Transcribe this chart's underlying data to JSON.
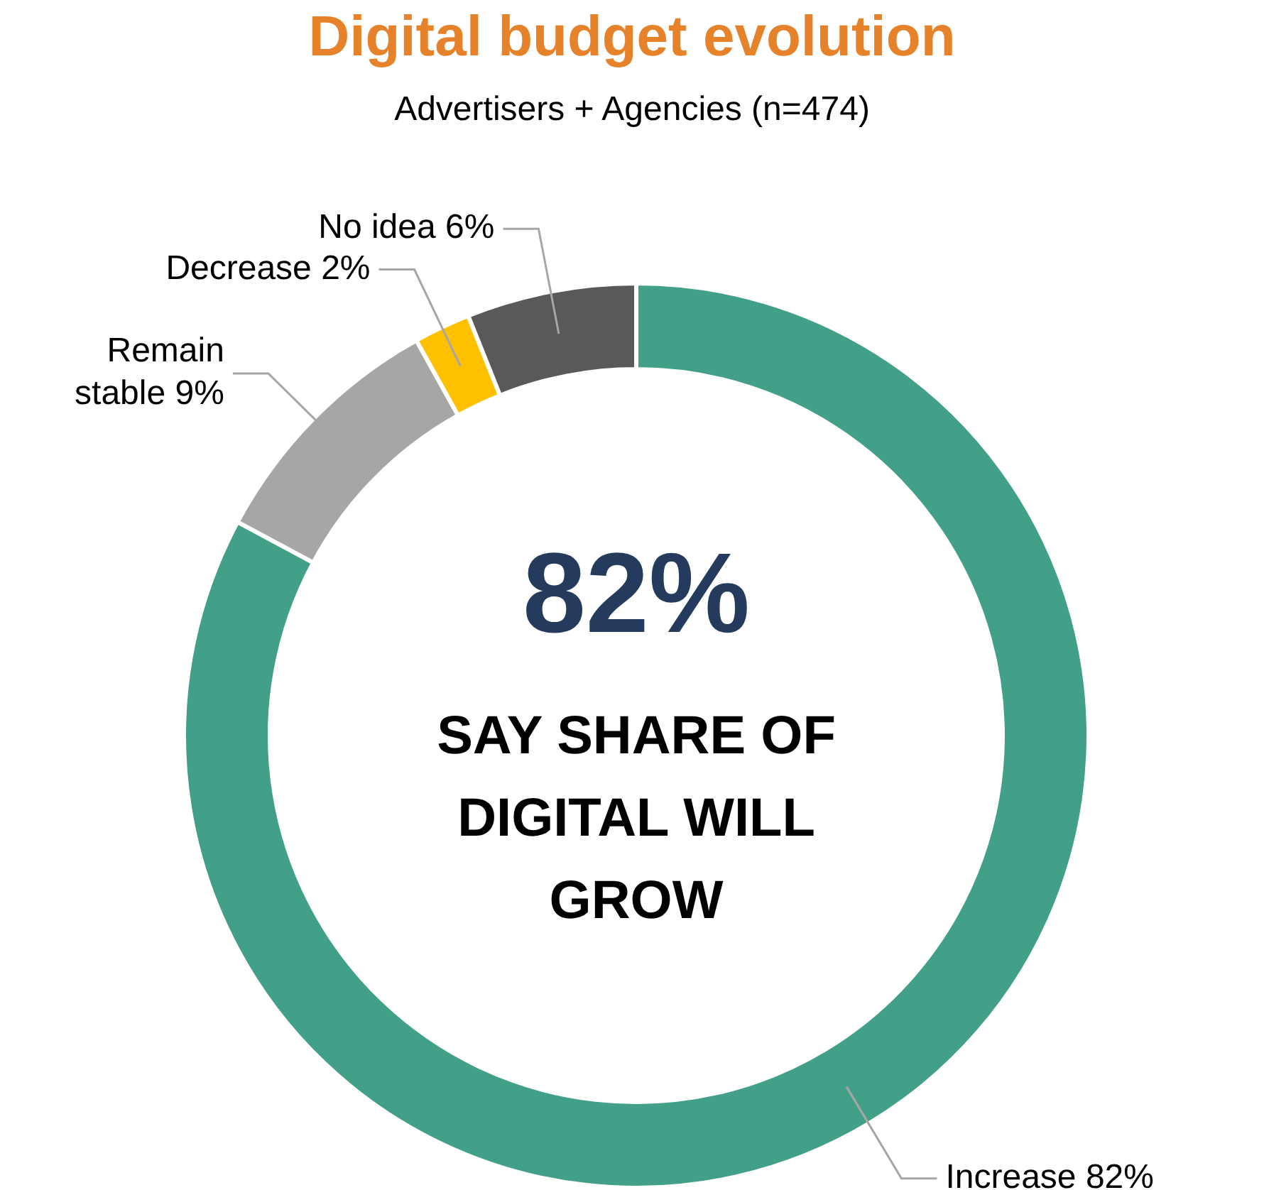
{
  "chart_data": {
    "type": "donut",
    "title": "Digital budget evolution",
    "subtitle": "Advertisers + Agencies (n=474)",
    "categories": [
      "Increase",
      "Remain stable",
      "Decrease",
      "No idea"
    ],
    "values": [
      82,
      9,
      2,
      6
    ],
    "value_labels": [
      "82%",
      "9%",
      "2%",
      "6%"
    ],
    "colors": [
      "#43a088",
      "#a6a6a6",
      "#ffc000",
      "#595959"
    ],
    "annotations": [
      "82%",
      "SAY SHARE OF DIGITAL WILL GROW"
    ],
    "legend": false
  }
}
